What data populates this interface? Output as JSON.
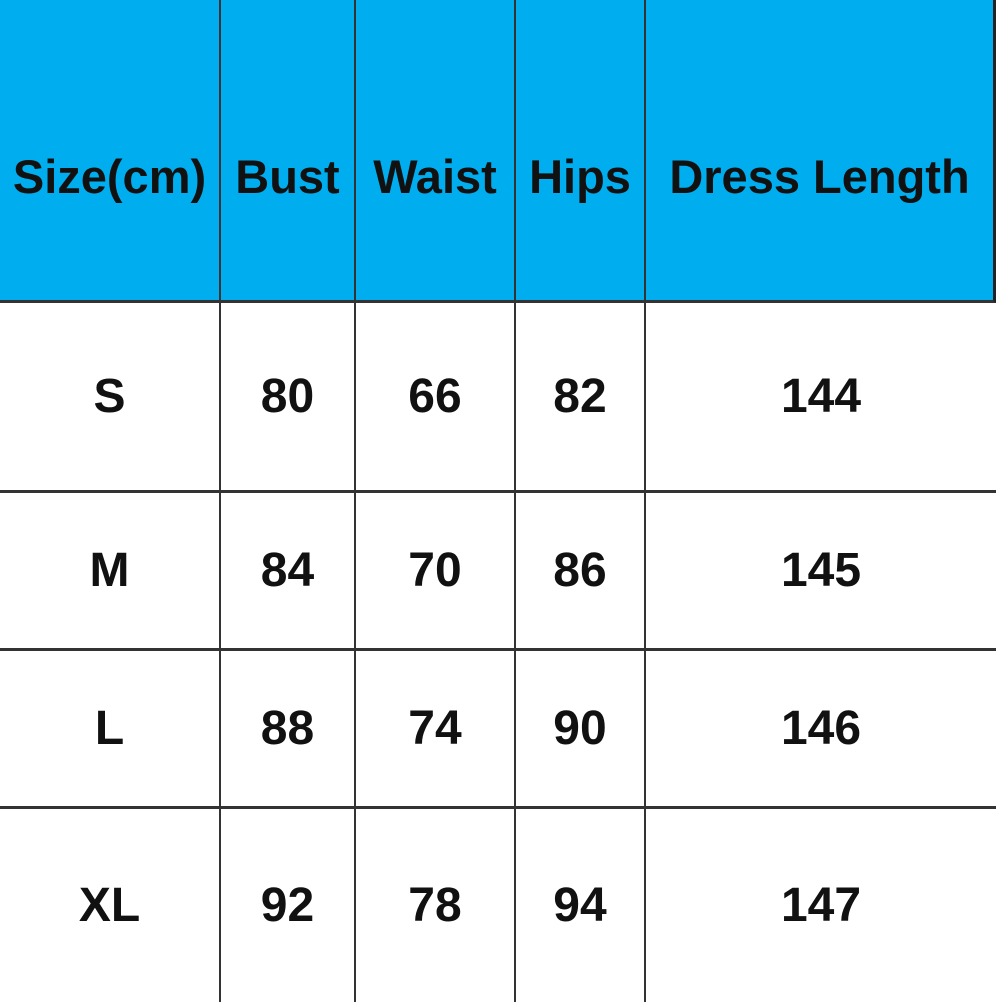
{
  "chart_data": {
    "type": "table",
    "columns": [
      "Size(cm)",
      "Bust",
      "Waist",
      "Hips",
      "Dress Length"
    ],
    "rows": [
      [
        "S",
        "80",
        "66",
        "82",
        "144"
      ],
      [
        "M",
        "84",
        "70",
        "86",
        "145"
      ],
      [
        "L",
        "88",
        "74",
        "90",
        "146"
      ],
      [
        "XL",
        "92",
        "78",
        "94",
        "147"
      ]
    ],
    "layout": {
      "header_position": "top",
      "grid": "on",
      "units": "cm"
    }
  },
  "colors": {
    "header_bg": "#00AEEF",
    "border": "#333333",
    "text": "#111111",
    "body_bg": "#ffffff"
  }
}
